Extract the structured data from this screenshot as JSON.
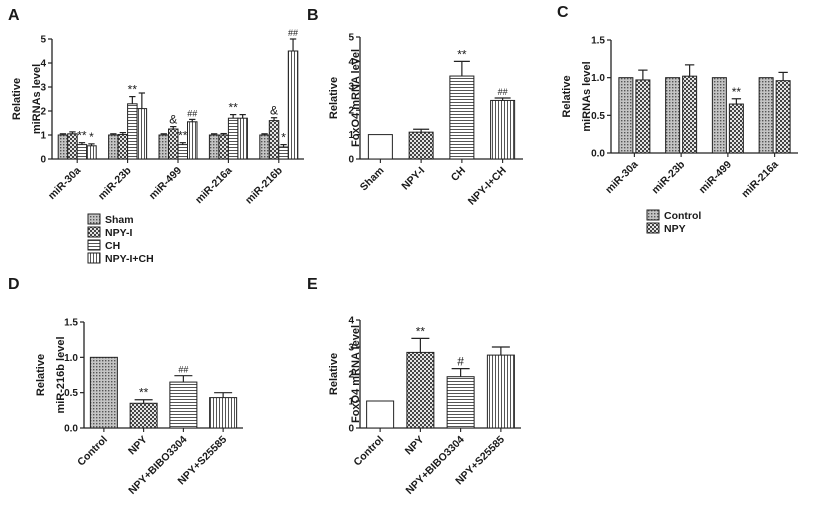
{
  "chart_data": [
    {
      "panel": "A",
      "type": "bar",
      "ylabel": [
        "Relative",
        "miRNAs level"
      ],
      "ylim": [
        0,
        5
      ],
      "yticks": [
        0,
        1,
        2,
        3,
        4,
        5
      ],
      "categories": [
        "miR-30a",
        "miR-23b",
        "miR-499",
        "miR-216a",
        "miR-216b"
      ],
      "series": [
        {
          "name": "Sham",
          "pattern": "dots",
          "values": [
            1.0,
            1.0,
            1.0,
            1.0,
            1.0
          ],
          "errors": [
            0.05,
            0.05,
            0.05,
            0.05,
            0.05
          ],
          "marks": [
            "",
            "",
            "",
            "",
            ""
          ]
        },
        {
          "name": "NPY-I",
          "pattern": "checker",
          "values": [
            1.05,
            1.02,
            1.25,
            1.0,
            1.6
          ],
          "errors": [
            0.08,
            0.08,
            0.1,
            0.06,
            0.12
          ],
          "marks": [
            "",
            "",
            "&",
            "",
            "&"
          ]
        },
        {
          "name": "CH",
          "pattern": "hlines",
          "values": [
            0.6,
            2.3,
            0.6,
            1.7,
            0.5
          ],
          "errors": [
            0.08,
            0.3,
            0.08,
            0.15,
            0.1
          ],
          "marks": [
            "**",
            "**",
            "**",
            "**",
            "*"
          ]
        },
        {
          "name": "NPY-I+CH",
          "pattern": "vlines",
          "values": [
            0.55,
            2.1,
            1.55,
            1.7,
            4.5
          ],
          "errors": [
            0.08,
            0.65,
            0.1,
            0.15,
            0.5
          ],
          "marks": [
            "*",
            "",
            "##",
            "",
            "##"
          ]
        }
      ]
    },
    {
      "panel": "B",
      "type": "bar",
      "ylabel": [
        "Relative",
        "FoxO4 mRNA level"
      ],
      "ylim": [
        0,
        5
      ],
      "yticks": [
        0,
        1,
        2,
        3,
        4,
        5
      ],
      "categories": [
        "Sham",
        "NPY-I",
        "CH",
        "NPY-I+CH"
      ],
      "patterns": [
        "solid",
        "checker",
        "hlines",
        "vlines"
      ],
      "values": [
        1.0,
        1.1,
        3.4,
        2.4
      ],
      "errors": [
        0.0,
        0.12,
        0.6,
        0.1
      ],
      "marks": [
        "",
        "",
        "**",
        "##"
      ]
    },
    {
      "panel": "C",
      "type": "bar",
      "ylabel": [
        "Relative",
        "miRNAs level"
      ],
      "ylim": [
        0,
        1.5
      ],
      "yticks": [
        "0.0",
        "0.5",
        "1.0",
        "1.5"
      ],
      "categories": [
        "miR-30a",
        "miR-23b",
        "miR-499",
        "miR-216a"
      ],
      "series": [
        {
          "name": "Control",
          "pattern": "dots",
          "values": [
            1.0,
            1.0,
            1.0,
            1.0
          ],
          "errors": [
            0.0,
            0.0,
            0.0,
            0.0
          ],
          "marks": [
            "",
            "",
            "",
            ""
          ]
        },
        {
          "name": "NPY",
          "pattern": "checker",
          "values": [
            0.97,
            1.02,
            0.65,
            0.96
          ],
          "errors": [
            0.13,
            0.15,
            0.07,
            0.11
          ],
          "marks": [
            "",
            "",
            "**",
            ""
          ]
        }
      ]
    },
    {
      "panel": "D",
      "type": "bar",
      "ylabel": [
        "Relative",
        "miR-216b level"
      ],
      "ylim": [
        0,
        1.5
      ],
      "yticks": [
        "0.0",
        "0.5",
        "1.0",
        "1.5"
      ],
      "categories": [
        "Control",
        "NPY",
        "NPY+BIBO3304",
        "NPY+S25585"
      ],
      "patterns": [
        "dots",
        "checker",
        "hlines",
        "vlines"
      ],
      "values": [
        1.0,
        0.35,
        0.65,
        0.43
      ],
      "errors": [
        0.0,
        0.05,
        0.09,
        0.07
      ],
      "marks": [
        "",
        "**",
        "##",
        ""
      ]
    },
    {
      "panel": "E",
      "type": "bar",
      "ylabel": [
        "Relative",
        "FoxO4 mRNA level"
      ],
      "ylim": [
        0,
        4
      ],
      "yticks": [
        0,
        1,
        2,
        3,
        4
      ],
      "categories": [
        "Control",
        "NPY",
        "NPY+BIBO3304",
        "NPY+S25585"
      ],
      "patterns": [
        "solid",
        "checker",
        "hlines",
        "vlines"
      ],
      "values": [
        1.0,
        2.8,
        1.9,
        2.7
      ],
      "errors": [
        0.0,
        0.52,
        0.3,
        0.3
      ],
      "marks": [
        "",
        "**",
        "#",
        ""
      ]
    }
  ]
}
